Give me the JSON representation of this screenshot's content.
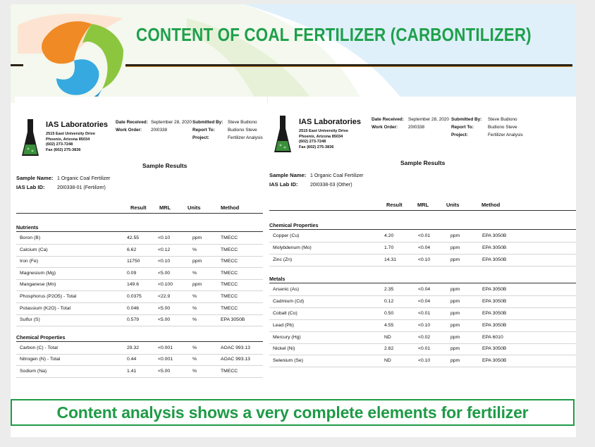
{
  "slide": {
    "title": "CONTENT OF COAL FERTILIZER (CARBONTILIZER)",
    "caption": "Content analysis shows a very complete elements for fertilizer",
    "colors": {
      "title": "#1ea04b",
      "caption": "#1e9b46",
      "rule": "#2b2318"
    }
  },
  "reports": [
    {
      "lab_name": "IAS Laboratories",
      "address": [
        "2515 East University Drive",
        "Phoenix, Arizona 85034",
        "(602) 273-7248",
        "Fax (602) 275-3836"
      ],
      "date_received_label": "Date Received:",
      "date_received": "September 28, 2020",
      "work_order_label": "Work Order:",
      "work_order": "20I0338",
      "submitted_by_label": "Submitted By:",
      "submitted_by": "Steve Budiono",
      "report_to_label": "Report To:",
      "report_to": "Budiono Steve",
      "project_label": "Project:",
      "project": "Fertilizer Analysis",
      "heading": "Sample Results",
      "sample_name_label": "Sample Name:",
      "sample_name": "1 Organic Coal Fertilizer",
      "lab_id_label": "IAS Lab ID:",
      "lab_id": "20I0338-01 (Fertilizer)",
      "columns": [
        "Result",
        "MRL",
        "Units",
        "Method"
      ],
      "sections": [
        {
          "name": "Nutrients",
          "rows": [
            [
              "Boron (B)",
              "42.55",
              "<0.10",
              "ppm",
              "TMECC"
            ],
            [
              "Calcium (Ca)",
              "6.62",
              "<0.12",
              "%",
              "TMECC"
            ],
            [
              "Iron (Fe)",
              "11750",
              "<0.10",
              "ppm",
              "TMECC"
            ],
            [
              "Magnesium (Mg)",
              "0.09",
              "<5.00",
              "%",
              "TMECC"
            ],
            [
              "Manganese (Mn)",
              "149.6",
              "<0.100",
              "ppm",
              "TMECC"
            ],
            [
              "Phosphorus (P2O5) - Total",
              "0.0375",
              "<22.9",
              "%",
              "TMECC"
            ],
            [
              "Potassium (K2O) - Total",
              "0.046",
              "<5.00",
              "%",
              "TMECC"
            ],
            [
              "Sulfur (S)",
              "0.579",
              "<5.00",
              "%",
              "EPA 3050B"
            ]
          ]
        },
        {
          "name": "Chemical Properties",
          "rows": [
            [
              "Carbon (C) - Total",
              "29.32",
              "<0.001",
              "%",
              "AOAC 993.13"
            ],
            [
              "Nitrogen (N) - Total",
              "0.44",
              "<0.001",
              "%",
              "AOAC 993.13"
            ],
            [
              "Sodium (Na)",
              "1.41",
              "<5.00",
              "%",
              "TMECC"
            ]
          ]
        }
      ]
    },
    {
      "lab_name": "IAS Laboratories",
      "address": [
        "2515 East University Drive",
        "Phoenix, Arizona 85034",
        "(602) 273-7248",
        "Fax (602) 275-3836"
      ],
      "date_received_label": "Date Received:",
      "date_received": "September 28, 2020",
      "work_order_label": "Work Order:",
      "work_order": "20I0338",
      "submitted_by_label": "Submitted By:",
      "submitted_by": "Steve Budiono",
      "report_to_label": "Report To:",
      "report_to": "Budiono Steve",
      "project_label": "Project:",
      "project": "Fertilizer Analysis",
      "heading": "Sample Results",
      "sample_name_label": "Sample Name:",
      "sample_name": "1 Organic Coal Fertilizer",
      "lab_id_label": "IAS Lab ID:",
      "lab_id": "20I0338-03 (Other)",
      "columns": [
        "Result",
        "MRL",
        "Units",
        "Method"
      ],
      "sections": [
        {
          "name": "Chemical Properties",
          "rows": [
            [
              "Copper (Cu)",
              "4.20",
              "<0.01",
              "ppm",
              "EPA 3050B"
            ],
            [
              "Molybdenum (Mo)",
              "1.70",
              "<0.04",
              "ppm",
              "EPA 3050B"
            ],
            [
              "Zinc (Zn)",
              "14.31",
              "<0.10",
              "ppm",
              "EPA 3050B"
            ]
          ]
        },
        {
          "name": "Metals",
          "rows": [
            [
              "Arsenic (As)",
              "2.35",
              "<0.04",
              "ppm",
              "EPA 3050B"
            ],
            [
              "Cadmium (Cd)",
              "0.12",
              "<0.04",
              "ppm",
              "EPA 3050B"
            ],
            [
              "Cobalt (Co)",
              "0.50",
              "<0.01",
              "ppm",
              "EPA 3050B"
            ],
            [
              "Lead (Pb)",
              "4.55",
              "<0.10",
              "ppm",
              "EPA 3050B"
            ],
            [
              "Mercury (Hg)",
              "ND",
              "<0.02",
              "ppm",
              "EPA 6010"
            ],
            [
              "Nickel (Ni)",
              "2.82",
              "<0.01",
              "ppm",
              "EPA 3050B"
            ],
            [
              "Selenium (Se)",
              "ND",
              "<0.10",
              "ppm",
              "EPA 3050B"
            ]
          ]
        }
      ]
    }
  ]
}
